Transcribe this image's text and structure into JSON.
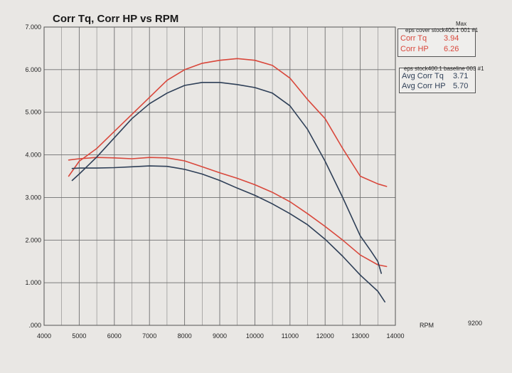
{
  "chart_data": {
    "type": "line",
    "title": "Corr Tq, Corr HP vs RPM",
    "xlabel": "RPM",
    "x_extra_label": "9200",
    "xlim": [
      4000,
      14000
    ],
    "ylim": [
      0,
      7
    ],
    "x_ticks": [
      "4000",
      "5000",
      "6000",
      "7000",
      "8000",
      "9000",
      "10000",
      "11000",
      "12000",
      "13000",
      "14000"
    ],
    "y_ticks": [
      ".000",
      "1.000",
      "2.000",
      "3.000",
      "4.000",
      "5.000",
      "6.000",
      "7.000"
    ],
    "grid": true,
    "colors": {
      "red": "#d9473b",
      "blue": "#2e3f57"
    },
    "series": [
      {
        "name": "Corr HP",
        "color": "#d9473b",
        "x": [
          4700,
          5000,
          5500,
          6000,
          6500,
          7000,
          7500,
          8000,
          8500,
          9000,
          9500,
          10000,
          10500,
          11000,
          11500,
          12000,
          12500,
          13000,
          13500,
          13750
        ],
        "y": [
          3.5,
          3.85,
          4.15,
          4.55,
          4.95,
          5.35,
          5.75,
          6.0,
          6.15,
          6.22,
          6.26,
          6.22,
          6.1,
          5.8,
          5.3,
          4.85,
          4.15,
          3.5,
          3.32,
          3.26
        ]
      },
      {
        "name": "Corr Tq",
        "color": "#d9473b",
        "x": [
          4700,
          5000,
          5500,
          6000,
          6500,
          7000,
          7500,
          8000,
          8500,
          9000,
          9500,
          10000,
          10500,
          11000,
          11500,
          12000,
          12500,
          13000,
          13500,
          13750
        ],
        "y": [
          3.88,
          3.91,
          3.94,
          3.93,
          3.91,
          3.94,
          3.93,
          3.86,
          3.72,
          3.58,
          3.45,
          3.3,
          3.12,
          2.9,
          2.62,
          2.32,
          2.0,
          1.65,
          1.42,
          1.38
        ]
      },
      {
        "name": "Avg Corr HP",
        "color": "#2e3f57",
        "x": [
          4800,
          5000,
          5500,
          6000,
          6500,
          7000,
          7500,
          8000,
          8500,
          9000,
          9500,
          10000,
          10500,
          11000,
          11500,
          12000,
          12500,
          13000,
          13300,
          13500,
          13600
        ],
        "y": [
          3.4,
          3.55,
          3.95,
          4.4,
          4.85,
          5.2,
          5.45,
          5.63,
          5.7,
          5.7,
          5.65,
          5.58,
          5.45,
          5.15,
          4.6,
          3.85,
          3.0,
          2.1,
          1.75,
          1.5,
          1.22
        ]
      },
      {
        "name": "Avg Corr Tq",
        "color": "#2e3f57",
        "x": [
          4800,
          5000,
          5500,
          6000,
          6500,
          7000,
          7500,
          8000,
          8500,
          9000,
          9500,
          10000,
          10500,
          11000,
          11500,
          12000,
          12500,
          13000,
          13500,
          13700
        ],
        "y": [
          3.68,
          3.69,
          3.69,
          3.7,
          3.72,
          3.74,
          3.73,
          3.66,
          3.55,
          3.4,
          3.22,
          3.05,
          2.85,
          2.62,
          2.36,
          2.02,
          1.62,
          1.18,
          0.8,
          0.55
        ]
      }
    ],
    "legend": [
      {
        "header": "eps cover stock400.1 001 #1",
        "max_label": "Max",
        "rows": [
          {
            "label": "Corr Tq",
            "value": "3.94"
          },
          {
            "label": "Corr HP",
            "value": "6.26"
          }
        ]
      },
      {
        "header": "eps stock400.1 baseline 003 #1",
        "rows": [
          {
            "label": "Avg Corr Tq",
            "value": "3.71"
          },
          {
            "label": "Avg Corr HP",
            "value": "5.70"
          }
        ]
      }
    ],
    "legend_position": "top-right"
  }
}
